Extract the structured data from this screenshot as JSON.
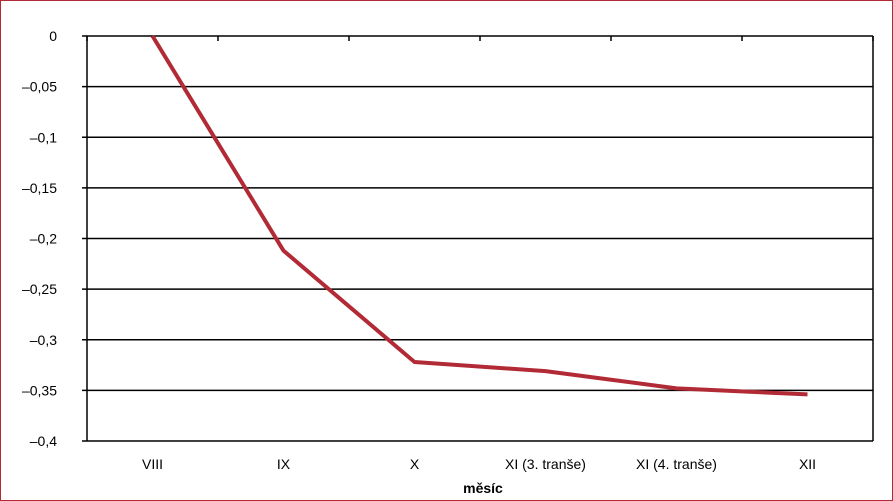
{
  "chart_data": {
    "type": "line",
    "title": "",
    "xlabel": "měsíc",
    "ylabel": "",
    "categories": [
      "VIII",
      "IX",
      "X",
      "XI (3. tranše)",
      "XI (4. tranše)",
      "XII"
    ],
    "series": [
      {
        "values": [
          0,
          -0.212,
          -0.322,
          -0.331,
          -0.348,
          -0.354
        ]
      }
    ],
    "ylim": [
      -0.4,
      0
    ],
    "yticks": [
      0,
      -0.05,
      -0.1,
      -0.15,
      -0.2,
      -0.25,
      -0.3,
      -0.35,
      -0.4
    ],
    "ytick_labels": [
      "0",
      "–0,05",
      "–0,1",
      "–0,15",
      "–0,2",
      "–0,25",
      "–0,3",
      "–0,35",
      "–0,4"
    ],
    "grid": true,
    "legend": "none",
    "colors": {
      "line": "#b22a35",
      "frame": "#b22a35",
      "grid": "#000000"
    }
  }
}
